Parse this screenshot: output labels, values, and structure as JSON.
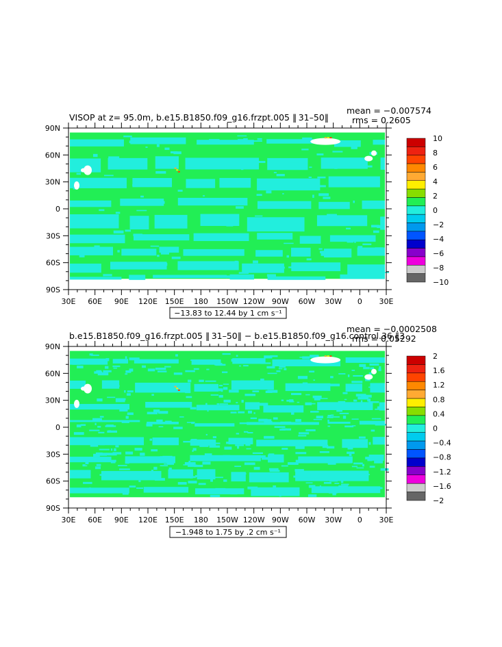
{
  "palette": {
    "bg": "#ffffff",
    "green": "#22ee55",
    "cyan": "#22eedd",
    "land": "#ffffff",
    "axis": "#000000"
  },
  "chart_data": [
    {
      "type": "heatmap",
      "title": "VISOP at z=  95.0m, b.e15.B1850.f09_g16.frzpt.005 ‖ 31–50‖",
      "stats": {
        "mean": "mean = −0.007574",
        "rms": "rms = 0.2605"
      },
      "subtitle": "−13.83 to 12.44 by 1 cm s⁻¹",
      "xticks": [
        "30E",
        "60E",
        "90E",
        "120E",
        "150E",
        "180",
        "150W",
        "120W",
        "90W",
        "60W",
        "30W",
        "0",
        "30E"
      ],
      "yticks": [
        "90N",
        "60N",
        "30N",
        "0",
        "30S",
        "60S",
        "90S"
      ],
      "legend_labels": [
        "10",
        "8",
        "6",
        "4",
        "2",
        "0",
        "−2",
        "−4",
        "−6",
        "−8",
        "−10"
      ],
      "legend_colors": [
        "#cc0000",
        "#ee2211",
        "#ff4400",
        "#ff8800",
        "#ffaa33",
        "#ffee00",
        "#88dd00",
        "#22ee55",
        "#22eedd",
        "#00ccee",
        "#0099ee",
        "#0055ff",
        "#0000cc",
        "#8800cc",
        "#ee00dd",
        "#cccccc",
        "#666666"
      ],
      "cyan_coverage": 0.42
    },
    {
      "type": "heatmap",
      "title": "b.e15.B1850.f09_g16.frzpt.005 ‖ 31–50‖ − b.e15.B1850.f09_g16.control.36 ‖3",
      "stats": {
        "mean": "mean = −0.0002508",
        "rms": "rms = 0.05292"
      },
      "subtitle": "−1.948 to 1.75 by .2 cm s⁻¹",
      "xticks": [
        "30E",
        "60E",
        "90E",
        "120E",
        "150E",
        "180",
        "150W",
        "120W",
        "90W",
        "60W",
        "30W",
        "0",
        "30E"
      ],
      "yticks": [
        "90N",
        "60N",
        "30N",
        "0",
        "30S",
        "60S",
        "90S"
      ],
      "legend_labels": [
        "2",
        "1.6",
        "1.2",
        "0.8",
        "0.4",
        "0",
        "−0.4",
        "−0.8",
        "−1.2",
        "−1.6",
        "−2"
      ],
      "legend_colors": [
        "#cc0000",
        "#ee2211",
        "#ff4400",
        "#ff8800",
        "#ffaa33",
        "#ffee00",
        "#88dd00",
        "#22ee55",
        "#22eedd",
        "#00ccee",
        "#0099ee",
        "#0055ff",
        "#0000cc",
        "#8800cc",
        "#ee00dd",
        "#cccccc",
        "#666666"
      ],
      "cyan_coverage": 0.28
    }
  ]
}
